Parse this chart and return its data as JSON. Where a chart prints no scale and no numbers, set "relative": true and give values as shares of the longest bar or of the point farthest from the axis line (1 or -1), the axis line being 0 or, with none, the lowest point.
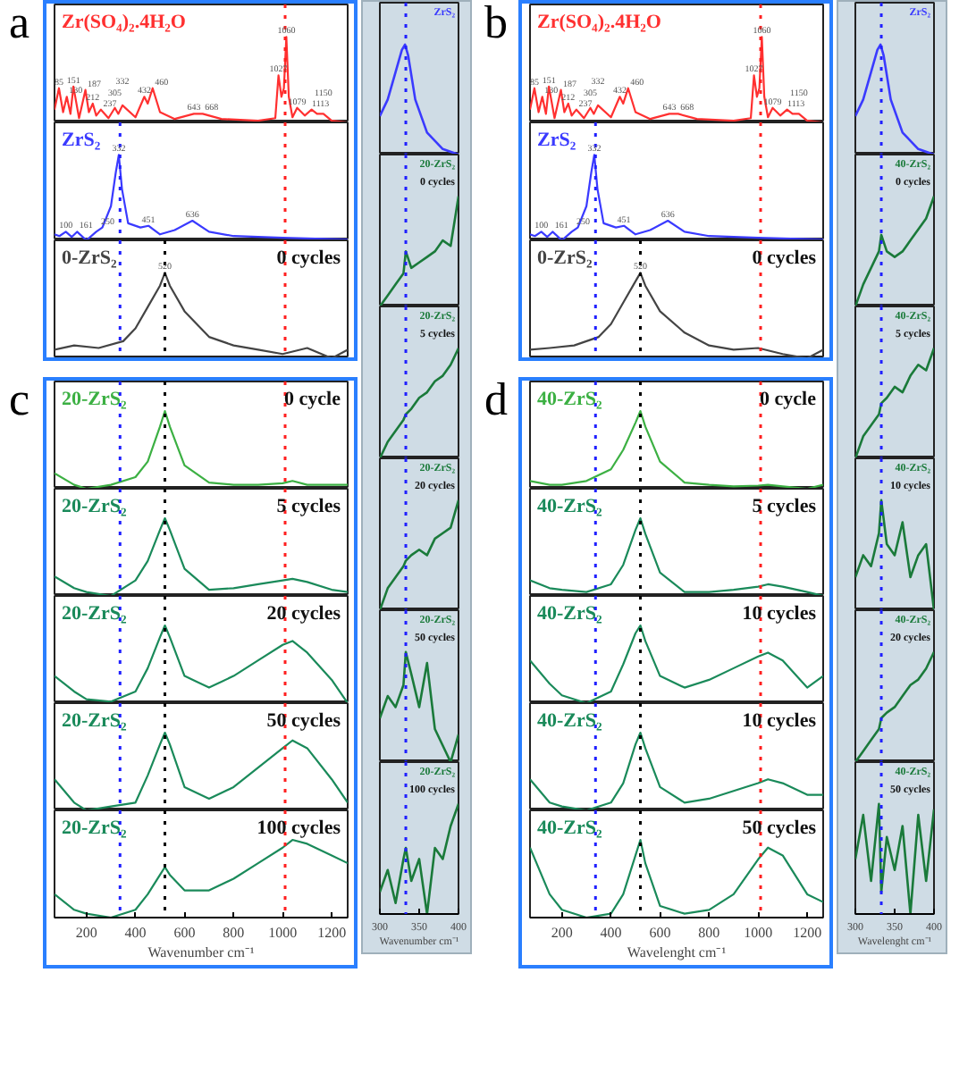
{
  "chart_data": [
    {
      "type": "line",
      "title": "a",
      "relative": true,
      "xlim": [
        70,
        1265
      ],
      "tick_labels": false,
      "color": "#ff3030",
      "x": [
        70,
        88,
        105,
        120,
        135,
        147,
        170,
        196,
        210,
        226,
        240,
        259,
        290,
        316,
        330,
        347,
        400,
        436,
        450,
        470,
        500,
        560,
        638,
        674,
        750,
        900,
        970,
        983,
        995,
        1005,
        1015,
        1025,
        1040,
        1059,
        1090,
        1118,
        1140,
        1166,
        1200,
        1265
      ],
      "values": [
        0.15,
        0.4,
        0.12,
        0.3,
        0.1,
        0.42,
        0.05,
        0.38,
        0.12,
        0.22,
        0.08,
        0.15,
        0.05,
        0.17,
        0.1,
        0.2,
        0.06,
        0.3,
        0.22,
        0.4,
        0.12,
        0.04,
        0.1,
        0.1,
        0.04,
        0.02,
        0.05,
        0.55,
        0.3,
        0.4,
        1.0,
        0.3,
        0.06,
        0.17,
        0.08,
        0.15,
        0.1,
        0.1,
        0.02,
        0.0
      ],
      "annotations": [
        "Zr(SO₄)₂.4H₂O",
        {
          "text": "85",
          "x": 88,
          "y": 0.4
        },
        {
          "text": "130",
          "x": 120,
          "y": 0.3
        },
        {
          "text": "151",
          "x": 147,
          "y": 0.42
        },
        {
          "text": "187",
          "x": 196,
          "y": 0.38
        },
        {
          "text": "212",
          "x": 226,
          "y": 0.22
        },
        {
          "text": "237",
          "x": 259,
          "y": 0.15
        },
        {
          "text": "305",
          "x": 316,
          "y": 0.17
        },
        {
          "text": "332",
          "x": 347,
          "y": 0.2
        },
        {
          "text": "432",
          "x": 436,
          "y": 0.3
        },
        {
          "text": "460",
          "x": 470,
          "y": 0.4
        },
        {
          "text": "643",
          "x": 638,
          "y": 0.1
        },
        {
          "text": "668",
          "x": 674,
          "y": 0.1
        },
        {
          "text": "1027",
          "x": 983,
          "y": 0.55
        },
        {
          "text": "1060",
          "x": 1015,
          "y": 1.0
        },
        {
          "text": "1079",
          "x": 1059,
          "y": 0.17
        },
        {
          "text": "1113",
          "x": 1118,
          "y": 0.15
        },
        {
          "text": "1150",
          "x": 1166,
          "y": 0.1
        }
      ],
      "ref_lines": [
        {
          "axis": "x",
          "value": 1010,
          "color": "#ff2020",
          "line_style": "dotted"
        }
      ]
    },
    {
      "type": "line",
      "relative": true,
      "xlim": [
        70,
        1265
      ],
      "tick_labels": false,
      "color": "#3a3aff",
      "x": [
        70,
        90,
        116,
        140,
        162,
        200,
        240,
        265,
        300,
        320,
        332,
        345,
        370,
        420,
        453,
        500,
        560,
        632,
        700,
        800,
        1000,
        1265
      ],
      "values": [
        0.07,
        0.05,
        0.1,
        0.04,
        0.1,
        0.0,
        0.1,
        0.15,
        0.4,
        0.8,
        1.0,
        0.6,
        0.2,
        0.15,
        0.17,
        0.07,
        0.12,
        0.23,
        0.1,
        0.05,
        0.03,
        0.01
      ],
      "annotations": [
        "ZrS₂",
        {
          "text": "100",
          "x": 116,
          "y": 0.1
        },
        {
          "text": "161",
          "x": 162,
          "y": 0.1
        },
        {
          "text": "250",
          "x": 265,
          "y": 0.15
        },
        {
          "text": "332",
          "x": 332,
          "y": 1.0
        },
        {
          "text": "451",
          "x": 453,
          "y": 0.17
        },
        {
          "text": "636",
          "x": 632,
          "y": 0.23
        }
      ],
      "ref_lines": [
        {
          "axis": "x",
          "value": 337,
          "color": "#2020ff",
          "line_style": "dotted"
        },
        {
          "axis": "x",
          "value": 1010,
          "color": "#ff2020",
          "line_style": "dotted"
        }
      ]
    },
    {
      "type": "line",
      "relative": true,
      "xlim": [
        70,
        1265
      ],
      "tick_labels": false,
      "color": "#444444",
      "x": [
        70,
        150,
        250,
        350,
        400,
        450,
        500,
        520,
        540,
        600,
        700,
        800,
        900,
        1000,
        1100,
        1200,
        1265
      ],
      "values": [
        0.1,
        0.15,
        0.12,
        0.2,
        0.35,
        0.6,
        0.85,
        1.0,
        0.85,
        0.55,
        0.25,
        0.15,
        0.1,
        0.05,
        0.12,
        0.0,
        0.1
      ],
      "annotations": [
        "0-ZrS₂",
        "0 cycles",
        {
          "text": "520",
          "x": 520,
          "y": 1.0
        }
      ],
      "ref_lines": [
        {
          "axis": "x",
          "value": 337,
          "color": "#2020ff",
          "line_style": "dotted"
        },
        {
          "axis": "x",
          "value": 520,
          "color": "#000000",
          "line_style": "dotted"
        },
        {
          "axis": "x",
          "value": 1010,
          "color": "#ff2020",
          "line_style": "dotted"
        }
      ]
    },
    {
      "type": "line",
      "relative": true,
      "xlim": [
        300,
        400
      ],
      "tick_labels": false,
      "color": "#3a3aff",
      "x": [
        300,
        310,
        320,
        328,
        332,
        336,
        345,
        360,
        380,
        400
      ],
      "values": [
        0.35,
        0.5,
        0.75,
        0.95,
        1.0,
        0.9,
        0.5,
        0.2,
        0.05,
        0.0
      ],
      "annotations": [
        "ZrS₂"
      ],
      "ref_lines": [
        {
          "axis": "x",
          "value": 333,
          "color": "#2020ff",
          "line_style": "dotted"
        }
      ]
    },
    {
      "type": "line",
      "relative": true,
      "xlim": [
        300,
        400
      ],
      "tick_labels": false,
      "color": "#1a7a3a",
      "x": [
        300,
        310,
        320,
        330,
        333,
        340,
        350,
        360,
        370,
        380,
        390,
        400
      ],
      "values": [
        0.0,
        0.1,
        0.2,
        0.3,
        0.5,
        0.35,
        0.4,
        0.45,
        0.5,
        0.6,
        0.55,
        1.0
      ],
      "annotations": [
        "20-ZrS₂",
        "0 cycles"
      ],
      "ref_lines": [
        {
          "axis": "x",
          "value": 333,
          "color": "#2020ff",
          "line_style": "dotted"
        }
      ]
    },
    {
      "type": "line",
      "relative": true,
      "xlim": [
        300,
        400
      ],
      "tick_labels": false,
      "color": "#1a7a3a",
      "x": [
        300,
        310,
        320,
        330,
        333,
        340,
        350,
        360,
        370,
        380,
        390,
        400
      ],
      "values": [
        0.0,
        0.15,
        0.25,
        0.35,
        0.4,
        0.45,
        0.55,
        0.6,
        0.7,
        0.75,
        0.85,
        1.0
      ],
      "annotations": [
        "20-ZrS₂",
        "5 cycles"
      ],
      "ref_lines": [
        {
          "axis": "x",
          "value": 333,
          "color": "#2020ff",
          "line_style": "dotted"
        }
      ]
    },
    {
      "type": "line",
      "relative": true,
      "xlim": [
        300,
        400
      ],
      "tick_labels": false,
      "color": "#1a7a3a",
      "x": [
        300,
        310,
        320,
        330,
        333,
        340,
        350,
        360,
        370,
        380,
        390,
        400
      ],
      "values": [
        0.0,
        0.2,
        0.3,
        0.4,
        0.45,
        0.5,
        0.55,
        0.5,
        0.65,
        0.7,
        0.75,
        1.0
      ],
      "annotations": [
        "20-ZrS₂",
        "20 cycles"
      ],
      "ref_lines": [
        {
          "axis": "x",
          "value": 333,
          "color": "#2020ff",
          "line_style": "dotted"
        }
      ]
    },
    {
      "type": "line",
      "relative": true,
      "xlim": [
        300,
        400
      ],
      "tick_labels": false,
      "color": "#1a7a3a",
      "x": [
        300,
        310,
        320,
        330,
        333,
        340,
        350,
        360,
        370,
        380,
        390,
        400
      ],
      "values": [
        0.4,
        0.6,
        0.5,
        0.7,
        1.0,
        0.8,
        0.5,
        0.9,
        0.3,
        0.15,
        0.0,
        0.25
      ],
      "annotations": [
        "20-ZrS₂",
        "50 cycles"
      ],
      "ref_lines": [
        {
          "axis": "x",
          "value": 333,
          "color": "#2020ff",
          "line_style": "dotted"
        }
      ]
    },
    {
      "type": "line",
      "relative": true,
      "xlim": [
        300,
        400
      ],
      "xticks": [
        300,
        350,
        400
      ],
      "xlabel": "Wavenumber cm⁻¹",
      "color": "#1a7a3a",
      "x": [
        300,
        310,
        320,
        330,
        333,
        340,
        350,
        360,
        370,
        380,
        390,
        400
      ],
      "values": [
        0.2,
        0.4,
        0.1,
        0.5,
        0.6,
        0.3,
        0.5,
        0.0,
        0.6,
        0.5,
        0.8,
        1.0
      ],
      "annotations": [
        "20-ZrS₂",
        "100 cycles"
      ],
      "ref_lines": [
        {
          "axis": "x",
          "value": 333,
          "color": "#2020ff",
          "line_style": "dotted"
        }
      ]
    },
    {
      "type": "line",
      "title": "b",
      "relative": true,
      "xlim": [
        70,
        1265
      ],
      "tick_labels": false,
      "color": "#ff3030",
      "x": [
        70,
        88,
        105,
        120,
        135,
        147,
        170,
        196,
        210,
        226,
        240,
        259,
        290,
        316,
        330,
        347,
        400,
        436,
        450,
        470,
        500,
        560,
        638,
        674,
        750,
        900,
        970,
        983,
        995,
        1005,
        1015,
        1025,
        1040,
        1059,
        1090,
        1118,
        1140,
        1166,
        1200,
        1265
      ],
      "values": [
        0.15,
        0.4,
        0.12,
        0.3,
        0.1,
        0.42,
        0.05,
        0.38,
        0.12,
        0.22,
        0.08,
        0.15,
        0.05,
        0.17,
        0.1,
        0.2,
        0.06,
        0.3,
        0.22,
        0.4,
        0.12,
        0.04,
        0.1,
        0.1,
        0.04,
        0.02,
        0.05,
        0.55,
        0.3,
        0.4,
        1.0,
        0.3,
        0.06,
        0.17,
        0.08,
        0.15,
        0.1,
        0.1,
        0.02,
        0.0
      ],
      "annotations": [
        "Zr(SO₄)₂.4H₂O",
        {
          "text": "85",
          "x": 88,
          "y": 0.4
        },
        {
          "text": "130",
          "x": 120,
          "y": 0.3
        },
        {
          "text": "151",
          "x": 147,
          "y": 0.42
        },
        {
          "text": "187",
          "x": 196,
          "y": 0.38
        },
        {
          "text": "212",
          "x": 226,
          "y": 0.22
        },
        {
          "text": "237",
          "x": 259,
          "y": 0.15
        },
        {
          "text": "305",
          "x": 316,
          "y": 0.17
        },
        {
          "text": "332",
          "x": 347,
          "y": 0.2
        },
        {
          "text": "432",
          "x": 436,
          "y": 0.3
        },
        {
          "text": "460",
          "x": 470,
          "y": 0.4
        },
        {
          "text": "643",
          "x": 638,
          "y": 0.1
        },
        {
          "text": "668",
          "x": 674,
          "y": 0.1
        },
        {
          "text": "1027",
          "x": 983,
          "y": 0.55
        },
        {
          "text": "1060",
          "x": 1015,
          "y": 1.0
        },
        {
          "text": "1079",
          "x": 1059,
          "y": 0.17
        },
        {
          "text": "1113",
          "x": 1118,
          "y": 0.15
        },
        {
          "text": "1150",
          "x": 1166,
          "y": 0.1
        }
      ],
      "ref_lines": [
        {
          "axis": "x",
          "value": 1010,
          "color": "#ff2020",
          "line_style": "dotted"
        }
      ]
    },
    {
      "type": "line",
      "relative": true,
      "xlim": [
        70,
        1265
      ],
      "tick_labels": false,
      "color": "#3a3aff",
      "x": [
        70,
        90,
        116,
        140,
        162,
        200,
        240,
        265,
        300,
        320,
        332,
        345,
        370,
        420,
        453,
        500,
        560,
        632,
        700,
        800,
        1000,
        1265
      ],
      "values": [
        0.07,
        0.05,
        0.1,
        0.04,
        0.1,
        0.0,
        0.1,
        0.15,
        0.4,
        0.8,
        1.0,
        0.6,
        0.2,
        0.15,
        0.17,
        0.07,
        0.12,
        0.23,
        0.1,
        0.05,
        0.03,
        0.01
      ],
      "annotations": [
        "ZrS₂",
        {
          "text": "100",
          "x": 116,
          "y": 0.1
        },
        {
          "text": "161",
          "x": 162,
          "y": 0.1
        },
        {
          "text": "250",
          "x": 265,
          "y": 0.15
        },
        {
          "text": "332",
          "x": 332,
          "y": 1.0
        },
        {
          "text": "451",
          "x": 453,
          "y": 0.17
        },
        {
          "text": "636",
          "x": 632,
          "y": 0.23
        }
      ],
      "ref_lines": [
        {
          "axis": "x",
          "value": 337,
          "color": "#2020ff",
          "line_style": "dotted"
        },
        {
          "axis": "x",
          "value": 1010,
          "color": "#ff2020",
          "line_style": "dotted"
        }
      ]
    },
    {
      "type": "line",
      "relative": true,
      "xlim": [
        70,
        1265
      ],
      "tick_labels": false,
      "color": "#444444",
      "x": [
        70,
        150,
        250,
        350,
        400,
        450,
        500,
        520,
        540,
        600,
        700,
        800,
        900,
        1000,
        1100,
        1200,
        1265
      ],
      "values": [
        0.1,
        0.12,
        0.15,
        0.25,
        0.4,
        0.65,
        0.9,
        1.0,
        0.85,
        0.55,
        0.3,
        0.15,
        0.1,
        0.12,
        0.05,
        0.0,
        0.1
      ],
      "annotations": [
        "0-ZrS₂",
        "0 cycles",
        {
          "text": "520",
          "x": 520,
          "y": 1.0
        }
      ],
      "ref_lines": [
        {
          "axis": "x",
          "value": 337,
          "color": "#2020ff",
          "line_style": "dotted"
        },
        {
          "axis": "x",
          "value": 520,
          "color": "#000000",
          "line_style": "dotted"
        },
        {
          "axis": "x",
          "value": 1010,
          "color": "#ff2020",
          "line_style": "dotted"
        }
      ]
    },
    {
      "type": "line",
      "relative": true,
      "xlim": [
        300,
        400
      ],
      "tick_labels": false,
      "color": "#3a3aff",
      "x": [
        300,
        310,
        320,
        328,
        332,
        336,
        345,
        360,
        380,
        400
      ],
      "values": [
        0.35,
        0.5,
        0.75,
        0.95,
        1.0,
        0.9,
        0.5,
        0.2,
        0.05,
        0.0
      ],
      "annotations": [
        "ZrS₂"
      ],
      "ref_lines": [
        {
          "axis": "x",
          "value": 333,
          "color": "#2020ff",
          "line_style": "dotted"
        }
      ]
    },
    {
      "type": "line",
      "relative": true,
      "xlim": [
        300,
        400
      ],
      "tick_labels": false,
      "color": "#1a7a3a",
      "x": [
        300,
        310,
        320,
        330,
        333,
        340,
        350,
        360,
        370,
        380,
        390,
        400
      ],
      "values": [
        0.0,
        0.2,
        0.35,
        0.5,
        0.65,
        0.5,
        0.45,
        0.5,
        0.6,
        0.7,
        0.8,
        1.0
      ],
      "annotations": [
        "40-ZrS₂",
        "0 cycles"
      ],
      "ref_lines": [
        {
          "axis": "x",
          "value": 333,
          "color": "#2020ff",
          "line_style": "dotted"
        }
      ]
    },
    {
      "type": "line",
      "relative": true,
      "xlim": [
        300,
        400
      ],
      "tick_labels": false,
      "color": "#1a7a3a",
      "x": [
        300,
        310,
        320,
        330,
        333,
        340,
        350,
        360,
        370,
        380,
        390,
        400
      ],
      "values": [
        0.0,
        0.2,
        0.3,
        0.4,
        0.5,
        0.55,
        0.65,
        0.6,
        0.75,
        0.85,
        0.8,
        1.0
      ],
      "annotations": [
        "40-ZrS₂",
        "5 cycles"
      ],
      "ref_lines": [
        {
          "axis": "x",
          "value": 333,
          "color": "#2020ff",
          "line_style": "dotted"
        }
      ]
    },
    {
      "type": "line",
      "relative": true,
      "xlim": [
        300,
        400
      ],
      "tick_labels": false,
      "color": "#1a7a3a",
      "x": [
        300,
        310,
        320,
        330,
        333,
        340,
        350,
        360,
        370,
        380,
        390,
        400
      ],
      "values": [
        0.3,
        0.5,
        0.4,
        0.7,
        1.0,
        0.6,
        0.5,
        0.8,
        0.3,
        0.5,
        0.6,
        0.0
      ],
      "annotations": [
        "40-ZrS₂",
        "10 cycles"
      ],
      "ref_lines": [
        {
          "axis": "x",
          "value": 333,
          "color": "#2020ff",
          "line_style": "dotted"
        }
      ]
    },
    {
      "type": "line",
      "relative": true,
      "xlim": [
        300,
        400
      ],
      "tick_labels": false,
      "color": "#1a7a3a",
      "x": [
        300,
        310,
        320,
        330,
        333,
        340,
        350,
        360,
        370,
        380,
        390,
        400
      ],
      "values": [
        0.0,
        0.1,
        0.2,
        0.3,
        0.4,
        0.45,
        0.5,
        0.6,
        0.7,
        0.75,
        0.85,
        1.0
      ],
      "annotations": [
        "40-ZrS₂",
        "20 cycles"
      ],
      "ref_lines": [
        {
          "axis": "x",
          "value": 333,
          "color": "#2020ff",
          "line_style": "dotted"
        }
      ]
    },
    {
      "type": "line",
      "relative": true,
      "xlim": [
        300,
        400
      ],
      "xticks": [
        300,
        350,
        400
      ],
      "xlabel": "Wavelenght cm⁻¹",
      "color": "#1a7a3a",
      "x": [
        300,
        310,
        320,
        330,
        333,
        340,
        350,
        360,
        370,
        380,
        390,
        400
      ],
      "values": [
        0.5,
        0.9,
        0.3,
        1.0,
        0.2,
        0.7,
        0.4,
        0.8,
        0.0,
        0.9,
        0.3,
        0.95
      ],
      "annotations": [
        "40-ZrS₂",
        "50 cycles"
      ],
      "ref_lines": [
        {
          "axis": "x",
          "value": 333,
          "color": "#2020ff",
          "line_style": "dotted"
        }
      ]
    },
    {
      "type": "line",
      "title": "c",
      "relative": true,
      "xlim": [
        70,
        1265
      ],
      "tick_labels": false,
      "color": "#3cb043",
      "x": [
        70,
        150,
        200,
        300,
        400,
        450,
        500,
        520,
        540,
        600,
        700,
        800,
        900,
        1000,
        1040,
        1100,
        1200,
        1265
      ],
      "values": [
        0.2,
        0.05,
        0.0,
        0.05,
        0.15,
        0.35,
        0.8,
        1.0,
        0.8,
        0.3,
        0.08,
        0.05,
        0.05,
        0.07,
        0.1,
        0.05,
        0.05,
        0.05
      ],
      "annotations": [
        "20-ZrS₂",
        "0 cycle"
      ],
      "ref_lines": [
        {
          "axis": "x",
          "value": 337,
          "color": "#2020ff",
          "line_style": "dotted"
        },
        {
          "axis": "x",
          "value": 520,
          "color": "#000000",
          "line_style": "dotted"
        },
        {
          "axis": "x",
          "value": 1010,
          "color": "#ff2020",
          "line_style": "dotted"
        }
      ]
    },
    {
      "type": "line",
      "relative": true,
      "xlim": [
        70,
        1265
      ],
      "tick_labels": false,
      "color": "#1a8a5a",
      "x": [
        70,
        150,
        200,
        300,
        400,
        450,
        500,
        520,
        540,
        600,
        700,
        800,
        900,
        1000,
        1040,
        1100,
        1200,
        1265
      ],
      "values": [
        0.25,
        0.1,
        0.05,
        0.0,
        0.2,
        0.45,
        0.85,
        1.0,
        0.85,
        0.35,
        0.08,
        0.1,
        0.15,
        0.2,
        0.22,
        0.18,
        0.08,
        0.05
      ],
      "annotations": [
        "20-ZrS₂",
        "5 cycles"
      ],
      "ref_lines": [
        {
          "axis": "x",
          "value": 337,
          "color": "#2020ff",
          "line_style": "dotted"
        },
        {
          "axis": "x",
          "value": 520,
          "color": "#000000",
          "line_style": "dotted"
        },
        {
          "axis": "x",
          "value": 1010,
          "color": "#ff2020",
          "line_style": "dotted"
        }
      ]
    },
    {
      "type": "line",
      "relative": true,
      "xlim": [
        70,
        1265
      ],
      "tick_labels": false,
      "color": "#1a8a5a",
      "x": [
        70,
        150,
        200,
        300,
        400,
        450,
        500,
        520,
        540,
        600,
        700,
        800,
        900,
        1000,
        1040,
        1100,
        1200,
        1265
      ],
      "values": [
        0.35,
        0.15,
        0.05,
        0.02,
        0.15,
        0.45,
        0.85,
        1.0,
        0.85,
        0.35,
        0.2,
        0.35,
        0.55,
        0.75,
        0.8,
        0.65,
        0.3,
        0.0
      ],
      "annotations": [
        "20-ZrS₂",
        "20 cycles"
      ],
      "ref_lines": [
        {
          "axis": "x",
          "value": 337,
          "color": "#2020ff",
          "line_style": "dotted"
        },
        {
          "axis": "x",
          "value": 520,
          "color": "#000000",
          "line_style": "dotted"
        },
        {
          "axis": "x",
          "value": 1010,
          "color": "#ff2020",
          "line_style": "dotted"
        }
      ]
    },
    {
      "type": "line",
      "relative": true,
      "xlim": [
        70,
        1265
      ],
      "tick_labels": false,
      "color": "#1a8a5a",
      "x": [
        70,
        150,
        200,
        300,
        400,
        450,
        500,
        520,
        540,
        600,
        700,
        800,
        900,
        1000,
        1040,
        1100,
        1200,
        1265
      ],
      "values": [
        0.4,
        0.1,
        0.0,
        0.05,
        0.1,
        0.45,
        0.85,
        1.0,
        0.85,
        0.3,
        0.15,
        0.3,
        0.55,
        0.8,
        0.9,
        0.8,
        0.4,
        0.1
      ],
      "annotations": [
        "20-ZrS₂",
        "50 cycles"
      ],
      "ref_lines": [
        {
          "axis": "x",
          "value": 337,
          "color": "#2020ff",
          "line_style": "dotted"
        },
        {
          "axis": "x",
          "value": 520,
          "color": "#000000",
          "line_style": "dotted"
        },
        {
          "axis": "x",
          "value": 1010,
          "color": "#ff2020",
          "line_style": "dotted"
        }
      ]
    },
    {
      "type": "line",
      "relative": true,
      "xlim": [
        70,
        1265
      ],
      "xticks": [
        200,
        400,
        600,
        800,
        1000,
        1200
      ],
      "xlabel": "Wavenumber cm⁻¹",
      "color": "#1a8a5a",
      "x": [
        70,
        150,
        200,
        300,
        400,
        450,
        500,
        520,
        540,
        600,
        700,
        800,
        900,
        1000,
        1040,
        1100,
        1200,
        1265
      ],
      "values": [
        0.3,
        0.1,
        0.05,
        0.0,
        0.1,
        0.3,
        0.55,
        0.65,
        0.55,
        0.35,
        0.35,
        0.5,
        0.7,
        0.9,
        1.0,
        0.95,
        0.8,
        0.7
      ],
      "annotations": [
        "20-ZrS₂",
        "100 cycles"
      ],
      "ref_lines": [
        {
          "axis": "x",
          "value": 337,
          "color": "#2020ff",
          "line_style": "dotted"
        },
        {
          "axis": "x",
          "value": 520,
          "color": "#000000",
          "line_style": "dotted"
        },
        {
          "axis": "x",
          "value": 1010,
          "color": "#ff2020",
          "line_style": "dotted"
        }
      ]
    },
    {
      "type": "line",
      "title": "d",
      "relative": true,
      "xlim": [
        70,
        1265
      ],
      "tick_labels": false,
      "color": "#3cb043",
      "x": [
        70,
        150,
        200,
        300,
        400,
        450,
        500,
        520,
        540,
        600,
        700,
        800,
        900,
        1000,
        1040,
        1100,
        1200,
        1265
      ],
      "values": [
        0.1,
        0.05,
        0.05,
        0.1,
        0.25,
        0.5,
        0.85,
        1.0,
        0.8,
        0.35,
        0.08,
        0.05,
        0.03,
        0.04,
        0.05,
        0.03,
        0.0,
        0.05
      ],
      "annotations": [
        "40-ZrS₂",
        "0 cycle"
      ],
      "ref_lines": [
        {
          "axis": "x",
          "value": 337,
          "color": "#2020ff",
          "line_style": "dotted"
        },
        {
          "axis": "x",
          "value": 520,
          "color": "#000000",
          "line_style": "dotted"
        },
        {
          "axis": "x",
          "value": 1010,
          "color": "#ff2020",
          "line_style": "dotted"
        }
      ]
    },
    {
      "type": "line",
      "relative": true,
      "xlim": [
        70,
        1265
      ],
      "tick_labels": false,
      "color": "#1a8a5a",
      "x": [
        70,
        150,
        200,
        300,
        400,
        450,
        500,
        520,
        540,
        600,
        700,
        800,
        900,
        1000,
        1040,
        1100,
        1200,
        1265
      ],
      "values": [
        0.2,
        0.1,
        0.08,
        0.05,
        0.15,
        0.4,
        0.85,
        1.0,
        0.8,
        0.3,
        0.05,
        0.05,
        0.08,
        0.12,
        0.15,
        0.12,
        0.05,
        0.0
      ],
      "annotations": [
        "40-ZrS₂",
        "5 cycles"
      ],
      "ref_lines": [
        {
          "axis": "x",
          "value": 337,
          "color": "#2020ff",
          "line_style": "dotted"
        },
        {
          "axis": "x",
          "value": 520,
          "color": "#000000",
          "line_style": "dotted"
        },
        {
          "axis": "x",
          "value": 1010,
          "color": "#ff2020",
          "line_style": "dotted"
        }
      ]
    },
    {
      "type": "line",
      "relative": true,
      "xlim": [
        70,
        1265
      ],
      "tick_labels": false,
      "color": "#1a8a5a",
      "x": [
        70,
        150,
        200,
        300,
        400,
        450,
        500,
        520,
        540,
        600,
        700,
        800,
        900,
        1000,
        1040,
        1100,
        1200,
        1265
      ],
      "values": [
        0.55,
        0.25,
        0.1,
        0.0,
        0.15,
        0.5,
        0.9,
        1.0,
        0.8,
        0.35,
        0.2,
        0.3,
        0.45,
        0.6,
        0.65,
        0.55,
        0.2,
        0.35
      ],
      "annotations": [
        "40-ZrS₂",
        "10 cycles"
      ],
      "ref_lines": [
        {
          "axis": "x",
          "value": 337,
          "color": "#2020ff",
          "line_style": "dotted"
        },
        {
          "axis": "x",
          "value": 520,
          "color": "#000000",
          "line_style": "dotted"
        },
        {
          "axis": "x",
          "value": 1010,
          "color": "#ff2020",
          "line_style": "dotted"
        }
      ]
    },
    {
      "type": "line",
      "relative": true,
      "xlim": [
        70,
        1265
      ],
      "tick_labels": false,
      "color": "#1a8a5a",
      "x": [
        70,
        150,
        200,
        300,
        400,
        450,
        500,
        520,
        540,
        600,
        700,
        800,
        900,
        1000,
        1040,
        1100,
        1200,
        1265
      ],
      "values": [
        0.4,
        0.1,
        0.05,
        0.0,
        0.1,
        0.35,
        0.85,
        1.0,
        0.8,
        0.3,
        0.1,
        0.15,
        0.25,
        0.35,
        0.4,
        0.35,
        0.2,
        0.2
      ],
      "annotations": [
        "40-ZrS₂",
        "10 cycles"
      ],
      "ref_lines": [
        {
          "axis": "x",
          "value": 337,
          "color": "#2020ff",
          "line_style": "dotted"
        },
        {
          "axis": "x",
          "value": 520,
          "color": "#000000",
          "line_style": "dotted"
        },
        {
          "axis": "x",
          "value": 1010,
          "color": "#ff2020",
          "line_style": "dotted"
        }
      ]
    },
    {
      "type": "line",
      "relative": true,
      "xlim": [
        70,
        1265
      ],
      "xticks": [
        200,
        400,
        600,
        800,
        1000,
        1200
      ],
      "xlabel": "Wavelenght cm⁻¹",
      "color": "#1a8a5a",
      "x": [
        70,
        150,
        200,
        300,
        400,
        450,
        500,
        520,
        540,
        600,
        700,
        800,
        900,
        1000,
        1040,
        1100,
        1200,
        1265
      ],
      "values": [
        0.9,
        0.3,
        0.1,
        0.0,
        0.05,
        0.3,
        0.8,
        1.0,
        0.7,
        0.15,
        0.05,
        0.1,
        0.3,
        0.75,
        0.9,
        0.8,
        0.3,
        0.2
      ],
      "annotations": [
        "40-ZrS₂",
        "50 cycles"
      ],
      "ref_lines": [
        {
          "axis": "x",
          "value": 337,
          "color": "#2020ff",
          "line_style": "dotted"
        },
        {
          "axis": "x",
          "value": 520,
          "color": "#000000",
          "line_style": "dotted"
        },
        {
          "axis": "x",
          "value": 1010,
          "color": "#ff2020",
          "line_style": "dotted"
        }
      ]
    }
  ]
}
